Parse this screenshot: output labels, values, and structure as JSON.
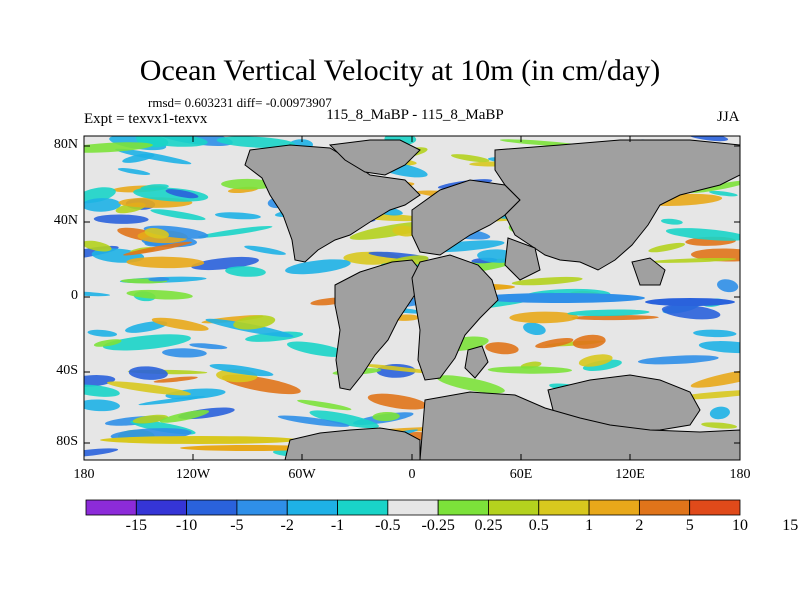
{
  "title": "Ocean Vertical Velocity at 10m (in cm/day)",
  "stats": "rmsd= 0.603231 diff= -0.00973907",
  "expt": "Expt = texvx1-texvx",
  "center_label": "115_8_MaBP - 115_8_MaBP",
  "season": "JJA",
  "axes": {
    "y_ticks": [
      "80N",
      "40N",
      "0",
      "40S",
      "80S"
    ],
    "x_ticks": [
      "180",
      "120W",
      "60W",
      "0",
      "60E",
      "120E",
      "180"
    ]
  },
  "colorbar": {
    "colors": [
      "#8c2bd9",
      "#3535d6",
      "#2a62dc",
      "#2f8fe8",
      "#1eb1e6",
      "#19d4c8",
      "#e6e6e6",
      "#7ce23a",
      "#b4d21e",
      "#d8c81e",
      "#e8a81a",
      "#e0741a",
      "#e04a1a"
    ],
    "labels": [
      "-15",
      "-10",
      "-5",
      "-2",
      "-1",
      "-0.5",
      "-0.25",
      "0.25",
      "0.5",
      "1",
      "2",
      "5",
      "10",
      "15"
    ]
  }
}
